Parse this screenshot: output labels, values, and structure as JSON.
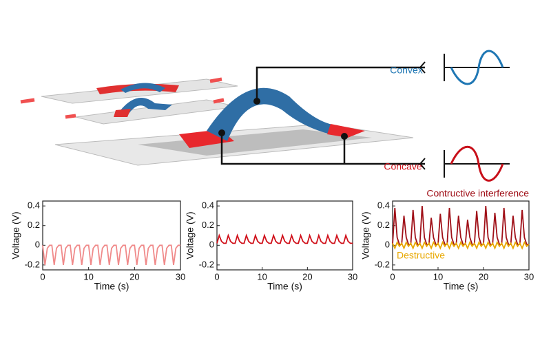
{
  "diagram": {
    "labels": [
      "Convex",
      "Concave"
    ]
  },
  "chart_data": [
    {
      "type": "line",
      "xlabel": "Time (s)",
      "ylabel": "Voltage (V)",
      "xlim": [
        0,
        30
      ],
      "ylim": [
        -0.25,
        0.45
      ],
      "xticks": [
        0,
        10,
        20,
        30
      ],
      "yticks": [
        -0.2,
        0,
        0.2,
        0.4
      ],
      "x": [
        0,
        0.5,
        1,
        1.5,
        2,
        2.5,
        3,
        3.5,
        4,
        4.5,
        5,
        5.5,
        6,
        6.5,
        7,
        7.5,
        8,
        8.5,
        9,
        9.5,
        10,
        10.5,
        11,
        11.5,
        12,
        12.5,
        13,
        13.5,
        14,
        14.5,
        15,
        15.5,
        16,
        16.5,
        17,
        17.5,
        18,
        18.5,
        19,
        19.5,
        20,
        20.5,
        21,
        21.5,
        22,
        22.5,
        23,
        23.5,
        24,
        24.5,
        25,
        25.5,
        26,
        26.5,
        27,
        27.5,
        28,
        28.5,
        29,
        29.5,
        30
      ],
      "series": [
        {
          "color": "#f08a8a",
          "values": [
            0,
            -0.2,
            -0.03,
            0,
            0,
            -0.2,
            -0.03,
            0,
            0,
            -0.2,
            -0.03,
            0,
            0,
            -0.2,
            -0.03,
            0,
            0,
            -0.2,
            -0.03,
            0,
            0,
            -0.2,
            -0.03,
            0,
            0,
            -0.2,
            -0.03,
            0,
            0,
            -0.2,
            -0.03,
            0,
            0,
            -0.2,
            -0.03,
            0,
            0,
            -0.2,
            -0.03,
            0,
            0,
            -0.2,
            -0.03,
            0,
            0,
            -0.2,
            -0.03,
            0,
            0,
            -0.2,
            -0.03,
            0,
            0,
            -0.2,
            -0.03,
            0,
            0,
            -0.2,
            -0.03,
            0,
            0
          ]
        }
      ]
    },
    {
      "type": "line",
      "xlabel": "Time (s)",
      "ylabel": "Voltage (V)",
      "xlim": [
        0,
        30
      ],
      "ylim": [
        -0.25,
        0.45
      ],
      "xticks": [
        0,
        10,
        20,
        30
      ],
      "yticks": [
        -0.2,
        0,
        0.2,
        0.4
      ],
      "x": [
        0,
        0.5,
        1,
        1.5,
        2,
        2.5,
        3,
        3.5,
        4,
        4.5,
        5,
        5.5,
        6,
        6.5,
        7,
        7.5,
        8,
        8.5,
        9,
        9.5,
        10,
        10.5,
        11,
        11.5,
        12,
        12.5,
        13,
        13.5,
        14,
        14.5,
        15,
        15.5,
        16,
        16.5,
        17,
        17.5,
        18,
        18.5,
        19,
        19.5,
        20,
        20.5,
        21,
        21.5,
        22,
        22.5,
        23,
        23.5,
        24,
        24.5,
        25,
        25.5,
        26,
        26.5,
        27,
        27.5,
        28,
        28.5,
        29,
        29.5,
        30
      ],
      "series": [
        {
          "color": "#d0101a",
          "values": [
            0.02,
            0.1,
            0.04,
            0.02,
            0.02,
            0.1,
            0.04,
            0.02,
            0.02,
            0.1,
            0.04,
            0.02,
            0.02,
            0.1,
            0.04,
            0.02,
            0.02,
            0.1,
            0.04,
            0.02,
            0.02,
            0.1,
            0.04,
            0.02,
            0.02,
            0.1,
            0.04,
            0.02,
            0.02,
            0.1,
            0.04,
            0.02,
            0.02,
            0.1,
            0.04,
            0.02,
            0.02,
            0.1,
            0.04,
            0.02,
            0.02,
            0.1,
            0.04,
            0.02,
            0.02,
            0.1,
            0.04,
            0.02,
            0.02,
            0.1,
            0.04,
            0.02,
            0.02,
            0.1,
            0.04,
            0.02,
            0.02,
            0.1,
            0.04,
            0.02,
            0.02
          ]
        }
      ]
    },
    {
      "type": "line",
      "xlabel": "Time (s)",
      "ylabel": "Voltage (V)",
      "xlim": [
        0,
        30
      ],
      "ylim": [
        -0.25,
        0.45
      ],
      "xticks": [
        0,
        10,
        20,
        30
      ],
      "yticks": [
        -0.2,
        0,
        0.2,
        0.4
      ],
      "x": [
        0,
        0.5,
        1,
        1.5,
        2,
        2.5,
        3,
        3.5,
        4,
        4.5,
        5,
        5.5,
        6,
        6.5,
        7,
        7.5,
        8,
        8.5,
        9,
        9.5,
        10,
        10.5,
        11,
        11.5,
        12,
        12.5,
        13,
        13.5,
        14,
        14.5,
        15,
        15.5,
        16,
        16.5,
        17,
        17.5,
        18,
        18.5,
        19,
        19.5,
        20,
        20.5,
        21,
        21.5,
        22,
        22.5,
        23,
        23.5,
        24,
        24.5,
        25,
        25.5,
        26,
        26.5,
        27,
        27.5,
        28,
        28.5,
        29,
        29.5,
        30
      ],
      "series": [
        {
          "name": "Contructive interference",
          "color": "#a01018",
          "values": [
            0.01,
            0.38,
            0.08,
            0.01,
            0.01,
            0.3,
            0.08,
            0.01,
            0.01,
            0.36,
            0.08,
            0.01,
            0.01,
            0.4,
            0.08,
            0.01,
            0.01,
            0.28,
            0.08,
            0.01,
            0.01,
            0.32,
            0.08,
            0.01,
            0.01,
            0.38,
            0.08,
            0.01,
            0.01,
            0.3,
            0.08,
            0.01,
            0.01,
            0.26,
            0.08,
            0.01,
            0.01,
            0.35,
            0.08,
            0.01,
            0.01,
            0.4,
            0.08,
            0.01,
            0.01,
            0.33,
            0.08,
            0.01,
            0.01,
            0.38,
            0.08,
            0.01,
            0.01,
            0.3,
            0.08,
            0.01,
            0.01,
            0.36,
            0.08,
            0.01,
            0.01
          ]
        },
        {
          "name": "Destructive",
          "color": "#e8a800",
          "values": [
            0.02,
            -0.03,
            0.03,
            -0.01,
            0.02,
            -0.03,
            0.03,
            -0.01,
            0.02,
            -0.03,
            0.03,
            -0.01,
            0.02,
            -0.03,
            0.03,
            -0.01,
            0.02,
            -0.03,
            0.03,
            -0.01,
            0.02,
            -0.03,
            0.03,
            -0.01,
            0.02,
            -0.03,
            0.03,
            -0.01,
            0.02,
            -0.03,
            0.03,
            -0.01,
            0.02,
            -0.03,
            0.03,
            -0.01,
            0.02,
            -0.03,
            0.03,
            -0.01,
            0.02,
            -0.03,
            0.03,
            -0.01,
            0.02,
            -0.03,
            0.03,
            -0.01,
            0.02,
            -0.03,
            0.03,
            -0.01,
            0.02,
            -0.03,
            0.03,
            -0.01,
            0.02,
            -0.03,
            0.03,
            -0.01,
            0.01
          ]
        }
      ]
    }
  ]
}
